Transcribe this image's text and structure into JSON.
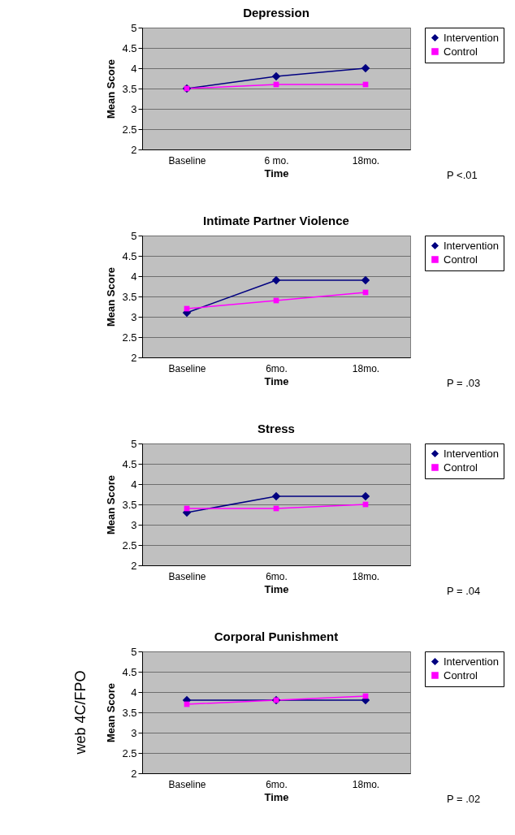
{
  "chart_data": [
    {
      "type": "line",
      "title": "Depression",
      "xlabel": "Time",
      "ylabel": "Mean Score",
      "categories": [
        "Baseline",
        "6 mo.",
        "18mo."
      ],
      "series": [
        {
          "name": "Intervention",
          "color": "#000080",
          "marker": "diamond",
          "values": [
            3.5,
            3.8,
            4.0
          ]
        },
        {
          "name": "Control",
          "color": "#ff00ff",
          "marker": "square",
          "values": [
            3.5,
            3.6,
            3.6
          ]
        }
      ],
      "ylim": [
        2,
        5
      ],
      "yticks": [
        2,
        2.5,
        3,
        3.5,
        4,
        4.5,
        5
      ],
      "grid": "y",
      "legend": "right",
      "line_style": "solid",
      "annotations": [
        "P <.01"
      ]
    },
    {
      "type": "line",
      "title": "Intimate Partner Violence",
      "xlabel": "Time",
      "ylabel": "Mean Score",
      "categories": [
        "Baseline",
        "6mo.",
        "18mo."
      ],
      "series": [
        {
          "name": "Intervention",
          "color": "#000080",
          "marker": "diamond",
          "values": [
            3.1,
            3.9,
            3.9
          ]
        },
        {
          "name": "Control",
          "color": "#ff00ff",
          "marker": "square",
          "values": [
            3.2,
            3.4,
            3.6
          ]
        }
      ],
      "ylim": [
        2,
        5
      ],
      "yticks": [
        2,
        2.5,
        3,
        3.5,
        4,
        4.5,
        5
      ],
      "grid": "y",
      "legend": "right",
      "line_style": "solid",
      "annotations": [
        "P = .03"
      ]
    },
    {
      "type": "line",
      "title": "Stress",
      "xlabel": "Time",
      "ylabel": "Mean Score",
      "categories": [
        "Baseline",
        "6mo.",
        "18mo."
      ],
      "series": [
        {
          "name": "Intervention",
          "color": "#000080",
          "marker": "diamond",
          "values": [
            3.3,
            3.7,
            3.7
          ]
        },
        {
          "name": "Control",
          "color": "#ff00ff",
          "marker": "square",
          "values": [
            3.4,
            3.4,
            3.5
          ]
        }
      ],
      "ylim": [
        2,
        5
      ],
      "yticks": [
        2,
        2.5,
        3,
        3.5,
        4,
        4.5,
        5
      ],
      "grid": "y",
      "legend": "right",
      "line_style": "solid",
      "annotations": [
        "P = .04"
      ]
    },
    {
      "type": "line",
      "title": "Corporal Punishment",
      "xlabel": "Time",
      "ylabel": "Mean Score",
      "categories": [
        "Baseline",
        "6mo.",
        "18mo."
      ],
      "series": [
        {
          "name": "Intervention",
          "color": "#000080",
          "marker": "diamond",
          "values": [
            3.8,
            3.8,
            3.8
          ]
        },
        {
          "name": "Control",
          "color": "#ff00ff",
          "marker": "square",
          "values": [
            3.7,
            3.8,
            3.9
          ]
        }
      ],
      "ylim": [
        2,
        5
      ],
      "yticks": [
        2,
        2.5,
        3,
        3.5,
        4,
        4.5,
        5
      ],
      "grid": "y",
      "legend": "right",
      "line_style": "solid",
      "annotations": [
        "P = .02",
        "web 4C/FPO"
      ]
    }
  ]
}
